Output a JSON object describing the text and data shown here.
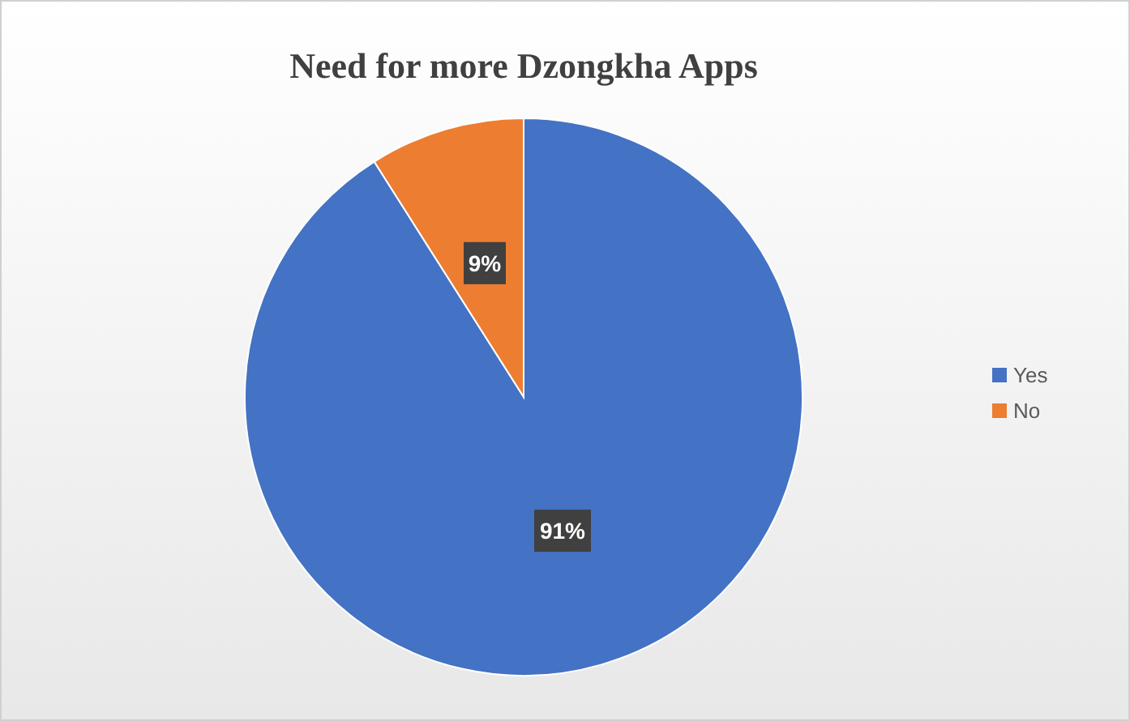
{
  "chart_data": {
    "type": "pie",
    "title": "Need for more Dzongkha Apps",
    "categories": [
      "Yes",
      "No"
    ],
    "values": [
      91,
      9
    ],
    "colors": [
      "#4472c4",
      "#ed7d31"
    ],
    "value_labels": [
      "91%",
      "9%"
    ],
    "legend": "right"
  }
}
